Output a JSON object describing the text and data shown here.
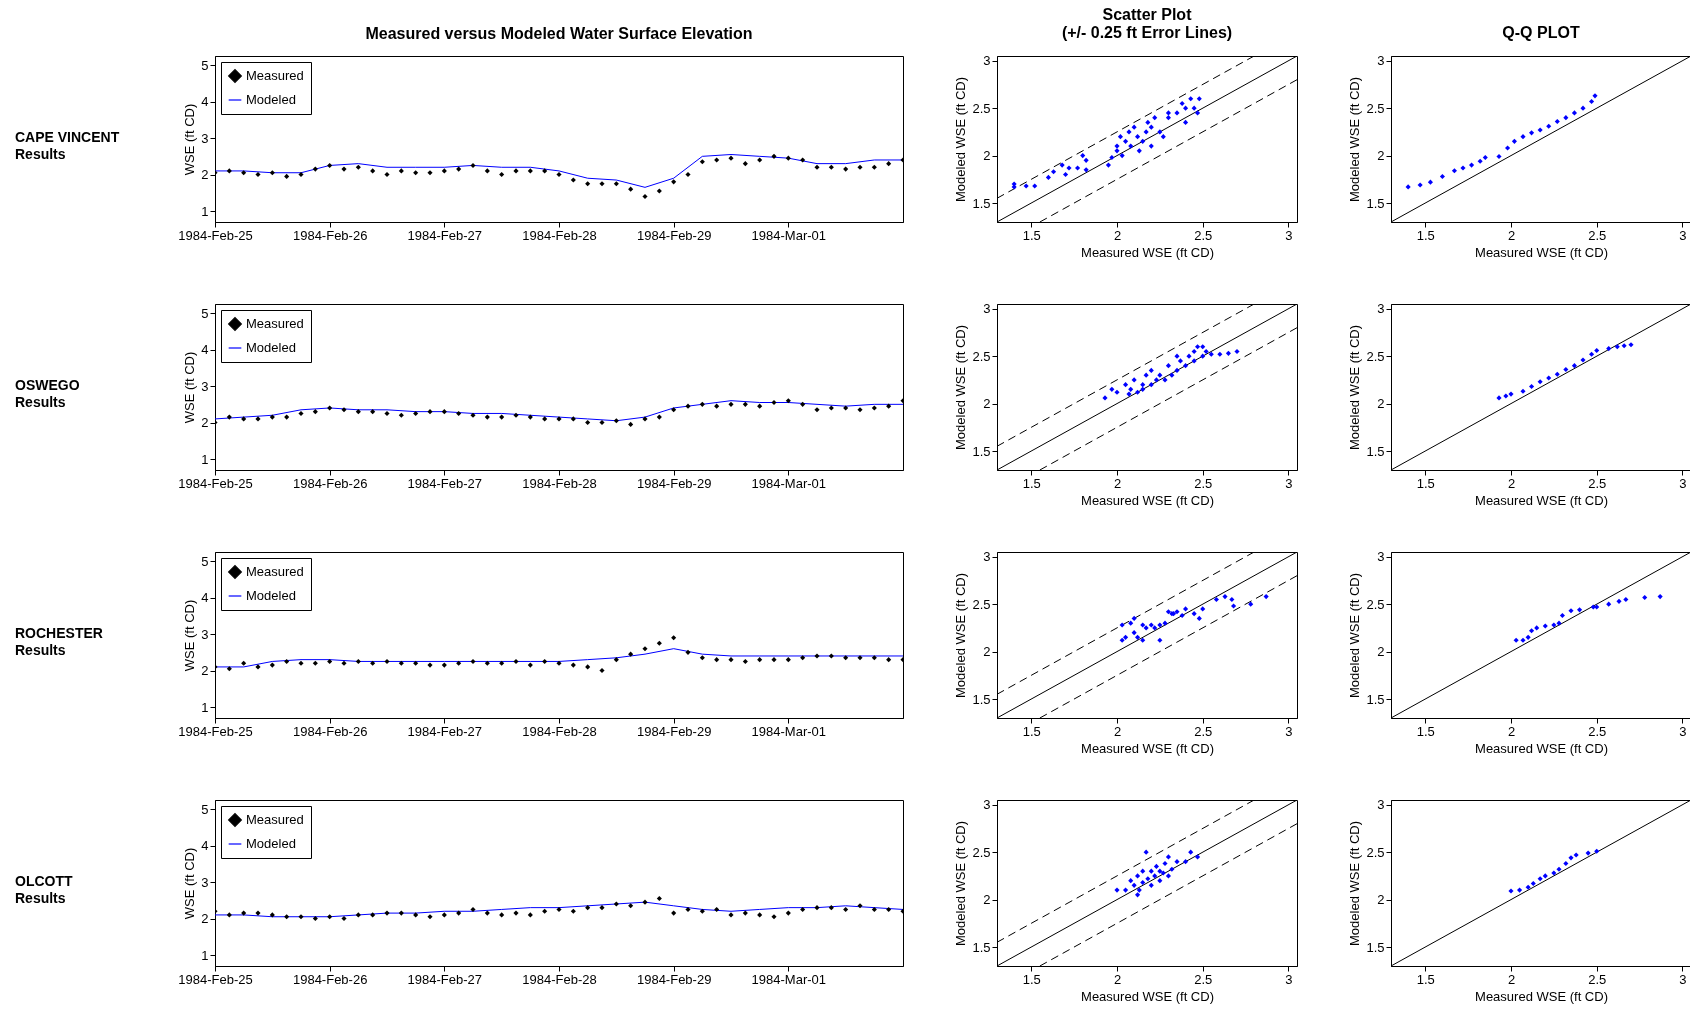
{
  "chart_data": [
    {
      "type": "line",
      "title": "Measured versus Modeled Water Surface Elevation",
      "ylabel": "WSE (ft CD)",
      "annotations": [
        "CAPE VINCENT",
        "Results"
      ],
      "legend": "top left",
      "xlim": [
        "1984-02-25",
        "1984-03-02"
      ],
      "xticks": [
        {
          "value": "1984-02-25",
          "label": "1984-Feb-25"
        },
        {
          "value": "1984-02-26",
          "label": "1984-Feb-26"
        },
        {
          "value": "1984-02-27",
          "label": "1984-Feb-27"
        },
        {
          "value": "1984-02-28",
          "label": "1984-Feb-28"
        },
        {
          "value": "1984-02-29",
          "label": "1984-Feb-29"
        },
        {
          "value": "1984-03-01",
          "label": "1984-Mar-01"
        }
      ],
      "ylim": [
        0.7,
        5.25
      ],
      "yticks": [
        1,
        2,
        3,
        4,
        5
      ],
      "x": [
        "1984-02-25T00:00",
        "1984-02-25T03:00",
        "1984-02-25T06:00",
        "1984-02-25T09:00",
        "1984-02-25T12:00",
        "1984-02-25T15:00",
        "1984-02-25T18:00",
        "1984-02-25T21:00",
        "1984-02-26T00:00",
        "1984-02-26T03:00",
        "1984-02-26T06:00",
        "1984-02-26T09:00",
        "1984-02-26T12:00",
        "1984-02-26T15:00",
        "1984-02-26T18:00",
        "1984-02-26T21:00",
        "1984-02-27T00:00",
        "1984-02-27T03:00",
        "1984-02-27T06:00",
        "1984-02-27T09:00",
        "1984-02-27T12:00",
        "1984-02-27T15:00",
        "1984-02-27T18:00",
        "1984-02-27T21:00",
        "1984-02-28T00:00",
        "1984-02-28T03:00",
        "1984-02-28T06:00",
        "1984-02-28T09:00",
        "1984-02-28T12:00",
        "1984-02-28T15:00",
        "1984-02-28T18:00",
        "1984-02-28T21:00",
        "1984-02-29T00:00",
        "1984-02-29T03:00",
        "1984-02-29T06:00",
        "1984-02-29T09:00",
        "1984-02-29T12:00",
        "1984-02-29T15:00",
        "1984-02-29T18:00",
        "1984-02-29T21:00",
        "1984-03-01T00:00",
        "1984-03-01T03:00",
        "1984-03-01T06:00",
        "1984-03-01T09:00",
        "1984-03-01T12:00",
        "1984-03-01T15:00",
        "1984-03-01T18:00",
        "1984-03-01T21:00",
        "1984-03-02T00:00"
      ],
      "series": [
        {
          "name": "Measured",
          "type": "scatter",
          "marker": "diamond",
          "color": "#000000",
          "values": [
            2.05,
            2.1,
            2.05,
            2.0,
            2.05,
            1.95,
            2.0,
            2.15,
            2.25,
            2.15,
            2.2,
            2.1,
            2.0,
            2.1,
            2.05,
            2.05,
            2.1,
            2.15,
            2.25,
            2.1,
            2.0,
            2.1,
            2.1,
            2.1,
            2.0,
            1.85,
            1.75,
            1.75,
            1.75,
            1.6,
            1.4,
            1.55,
            1.8,
            2.0,
            2.35,
            2.4,
            2.45,
            2.3,
            2.4,
            2.5,
            2.45,
            2.4,
            2.2,
            2.2,
            2.15,
            2.2,
            2.2,
            2.3,
            2.4
          ]
        },
        {
          "name": "Modeled",
          "line_style": "solid",
          "color": "#0000ff",
          "x": [
            "1984-02-25T00:00",
            "1984-02-25T06:00",
            "1984-02-25T12:00",
            "1984-02-25T18:00",
            "1984-02-26T00:00",
            "1984-02-26T06:00",
            "1984-02-26T12:00",
            "1984-02-26T18:00",
            "1984-02-27T00:00",
            "1984-02-27T06:00",
            "1984-02-27T12:00",
            "1984-02-27T18:00",
            "1984-02-28T00:00",
            "1984-02-28T06:00",
            "1984-02-28T12:00",
            "1984-02-28T18:00",
            "1984-02-29T00:00",
            "1984-02-29T06:00",
            "1984-02-29T12:00",
            "1984-02-29T18:00",
            "1984-03-01T00:00",
            "1984-03-01T06:00",
            "1984-03-01T12:00",
            "1984-03-01T18:00",
            "1984-03-02T00:00"
          ],
          "values": [
            2.1,
            2.1,
            2.05,
            2.05,
            2.25,
            2.3,
            2.2,
            2.2,
            2.2,
            2.25,
            2.2,
            2.2,
            2.1,
            1.9,
            1.85,
            1.65,
            1.9,
            2.5,
            2.55,
            2.5,
            2.45,
            2.3,
            2.3,
            2.4,
            2.4
          ]
        }
      ]
    },
    {
      "type": "scatter",
      "title": "Scatter Plot",
      "subtitle": "(+/- 0.25 ft Error Lines)",
      "xlabel": "Measured WSE (ft CD)",
      "ylabel": "Modeled WSE (ft CD)",
      "xlim": [
        1.3,
        3.05
      ],
      "ylim": [
        1.3,
        3.05
      ],
      "xticks": [
        1.5,
        2,
        2.5,
        3
      ],
      "yticks": [
        1.5,
        2,
        2.5,
        3
      ],
      "series": [
        {
          "marker": "diamond",
          "color": "#0000ff",
          "x": [
            1.4,
            1.4,
            1.47,
            1.52,
            1.6,
            1.63,
            1.68,
            1.7,
            1.72,
            1.77,
            1.8,
            1.82,
            1.82,
            1.95,
            1.97,
            2.0,
            2.0,
            2.02,
            2.03,
            2.05,
            2.07,
            2.08,
            2.1,
            2.12,
            2.13,
            2.15,
            2.17,
            2.18,
            2.2,
            2.2,
            2.22,
            2.25,
            2.27,
            2.3,
            2.35,
            2.38,
            2.4,
            2.43,
            2.45,
            2.47,
            2.48,
            2.4,
            2.3
          ],
          "values": [
            1.7,
            1.67,
            1.68,
            1.68,
            1.77,
            1.83,
            1.9,
            1.8,
            1.87,
            1.87,
            2.0,
            1.95,
            1.85,
            1.9,
            1.98,
            2.1,
            2.05,
            2.2,
            2.0,
            2.15,
            2.25,
            2.1,
            2.3,
            2.2,
            2.05,
            2.15,
            2.25,
            2.35,
            2.1,
            2.3,
            2.4,
            2.25,
            2.2,
            2.4,
            2.45,
            2.55,
            2.35,
            2.6,
            2.5,
            2.45,
            2.6,
            2.5,
            2.45
          ]
        },
        {
          "type": "line",
          "line_style": "solid",
          "color": "#000000",
          "x": [
            1.3,
            3.05
          ],
          "values": [
            1.3,
            3.05
          ]
        },
        {
          "type": "line",
          "line_style": "dashed",
          "color": "#000000",
          "x": [
            1.3,
            2.8
          ],
          "values": [
            1.55,
            3.05
          ]
        },
        {
          "type": "line",
          "line_style": "dashed",
          "color": "#000000",
          "x": [
            1.55,
            3.05
          ],
          "values": [
            1.3,
            2.8
          ]
        }
      ]
    },
    {
      "type": "scatter",
      "title": "Q-Q PLOT",
      "xlabel": "Measured WSE (ft CD)",
      "ylabel": "Modeled WSE (ft CD)",
      "xlim": [
        1.3,
        3.05
      ],
      "ylim": [
        1.3,
        3.05
      ],
      "xticks": [
        1.5,
        2,
        2.5,
        3
      ],
      "yticks": [
        1.5,
        2,
        2.5,
        3
      ],
      "series": [
        {
          "marker": "diamond",
          "color": "#0000ff",
          "x": [
            1.4,
            1.47,
            1.53,
            1.6,
            1.67,
            1.72,
            1.77,
            1.82,
            1.85,
            1.93,
            1.98,
            2.02,
            2.07,
            2.12,
            2.17,
            2.22,
            2.27,
            2.32,
            2.37,
            2.42,
            2.47,
            2.49
          ],
          "values": [
            1.67,
            1.69,
            1.72,
            1.78,
            1.84,
            1.87,
            1.9,
            1.94,
            1.98,
            1.99,
            2.08,
            2.15,
            2.2,
            2.24,
            2.27,
            2.31,
            2.36,
            2.4,
            2.45,
            2.5,
            2.57,
            2.63
          ]
        },
        {
          "type": "line",
          "line_style": "solid",
          "color": "#000000",
          "x": [
            1.3,
            3.05
          ],
          "values": [
            1.3,
            3.05
          ]
        }
      ]
    },
    {
      "type": "line",
      "ylabel": "WSE (ft CD)",
      "annotations": [
        "OSWEGO",
        "Results"
      ],
      "legend": "top left",
      "xlim": [
        "1984-02-25",
        "1984-03-02"
      ],
      "xticks": [
        {
          "value": "1984-02-25",
          "label": "1984-Feb-25"
        },
        {
          "value": "1984-02-26",
          "label": "1984-Feb-26"
        },
        {
          "value": "1984-02-27",
          "label": "1984-Feb-27"
        },
        {
          "value": "1984-02-28",
          "label": "1984-Feb-28"
        },
        {
          "value": "1984-02-29",
          "label": "1984-Feb-29"
        },
        {
          "value": "1984-03-01",
          "label": "1984-Mar-01"
        }
      ],
      "ylim": [
        0.7,
        5.25
      ],
      "yticks": [
        1,
        2,
        3,
        4,
        5
      ],
      "x": [
        "1984-02-25T00:00",
        "1984-02-25T03:00",
        "1984-02-25T06:00",
        "1984-02-25T09:00",
        "1984-02-25T12:00",
        "1984-02-25T15:00",
        "1984-02-25T18:00",
        "1984-02-25T21:00",
        "1984-02-26T00:00",
        "1984-02-26T03:00",
        "1984-02-26T06:00",
        "1984-02-26T09:00",
        "1984-02-26T12:00",
        "1984-02-26T15:00",
        "1984-02-26T18:00",
        "1984-02-26T21:00",
        "1984-02-27T00:00",
        "1984-02-27T03:00",
        "1984-02-27T06:00",
        "1984-02-27T09:00",
        "1984-02-27T12:00",
        "1984-02-27T15:00",
        "1984-02-27T18:00",
        "1984-02-27T21:00",
        "1984-02-28T00:00",
        "1984-02-28T03:00",
        "1984-02-28T06:00",
        "1984-02-28T09:00",
        "1984-02-28T12:00",
        "1984-02-28T15:00",
        "1984-02-28T18:00",
        "1984-02-28T21:00",
        "1984-02-29T00:00",
        "1984-02-29T03:00",
        "1984-02-29T06:00",
        "1984-02-29T09:00",
        "1984-02-29T12:00",
        "1984-02-29T15:00",
        "1984-02-29T18:00",
        "1984-02-29T21:00",
        "1984-03-01T00:00",
        "1984-03-01T03:00",
        "1984-03-01T06:00",
        "1984-03-01T09:00",
        "1984-03-01T12:00",
        "1984-03-01T15:00",
        "1984-03-01T18:00",
        "1984-03-01T21:00",
        "1984-03-02T00:00"
      ],
      "series": [
        {
          "name": "Measured",
          "type": "scatter",
          "marker": "diamond",
          "color": "#000000",
          "values": [
            2.0,
            2.15,
            2.1,
            2.1,
            2.15,
            2.15,
            2.25,
            2.3,
            2.4,
            2.35,
            2.3,
            2.3,
            2.25,
            2.2,
            2.25,
            2.3,
            2.3,
            2.25,
            2.2,
            2.15,
            2.15,
            2.2,
            2.15,
            2.1,
            2.1,
            2.1,
            2.0,
            2.0,
            2.05,
            1.95,
            2.1,
            2.15,
            2.35,
            2.45,
            2.5,
            2.45,
            2.5,
            2.5,
            2.45,
            2.55,
            2.6,
            2.5,
            2.35,
            2.4,
            2.4,
            2.35,
            2.4,
            2.45,
            2.6
          ]
        },
        {
          "name": "Modeled",
          "line_style": "solid",
          "color": "#0000ff",
          "x": [
            "1984-02-25T00:00",
            "1984-02-25T06:00",
            "1984-02-25T12:00",
            "1984-02-25T18:00",
            "1984-02-26T00:00",
            "1984-02-26T06:00",
            "1984-02-26T12:00",
            "1984-02-26T18:00",
            "1984-02-27T00:00",
            "1984-02-27T06:00",
            "1984-02-27T12:00",
            "1984-02-27T18:00",
            "1984-02-28T00:00",
            "1984-02-28T06:00",
            "1984-02-28T12:00",
            "1984-02-28T18:00",
            "1984-02-29T00:00",
            "1984-02-29T06:00",
            "1984-02-29T12:00",
            "1984-02-29T18:00",
            "1984-03-01T00:00",
            "1984-03-01T06:00",
            "1984-03-01T12:00",
            "1984-03-01T18:00",
            "1984-03-02T00:00"
          ],
          "values": [
            2.1,
            2.15,
            2.2,
            2.35,
            2.4,
            2.35,
            2.35,
            2.3,
            2.3,
            2.25,
            2.25,
            2.2,
            2.15,
            2.1,
            2.05,
            2.15,
            2.4,
            2.5,
            2.6,
            2.55,
            2.55,
            2.5,
            2.45,
            2.5,
            2.5
          ]
        }
      ]
    },
    {
      "type": "scatter",
      "xlabel": "Measured WSE (ft CD)",
      "ylabel": "Modeled WSE (ft CD)",
      "xlim": [
        1.3,
        3.05
      ],
      "ylim": [
        1.3,
        3.05
      ],
      "xticks": [
        1.5,
        2,
        2.5,
        3
      ],
      "yticks": [
        1.5,
        2,
        2.5,
        3
      ],
      "series": [
        {
          "marker": "diamond",
          "color": "#0000ff",
          "x": [
            1.93,
            1.97,
            2.0,
            2.05,
            2.07,
            2.08,
            2.1,
            2.12,
            2.15,
            2.17,
            2.2,
            2.2,
            2.23,
            2.25,
            2.28,
            2.3,
            2.32,
            2.35,
            2.37,
            2.4,
            2.42,
            2.45,
            2.45,
            2.47,
            2.5,
            2.5,
            2.52,
            2.55,
            2.6,
            2.65,
            2.7,
            2.35,
            2.15
          ],
          "values": [
            2.06,
            2.15,
            2.12,
            2.2,
            2.1,
            2.15,
            2.25,
            2.12,
            2.2,
            2.3,
            2.2,
            2.35,
            2.25,
            2.3,
            2.25,
            2.4,
            2.3,
            2.35,
            2.45,
            2.4,
            2.5,
            2.45,
            2.55,
            2.6,
            2.6,
            2.5,
            2.55,
            2.52,
            2.52,
            2.53,
            2.55,
            2.5,
            2.15
          ]
        },
        {
          "type": "line",
          "line_style": "solid",
          "color": "#000000",
          "x": [
            1.3,
            3.05
          ],
          "values": [
            1.3,
            3.05
          ]
        },
        {
          "type": "line",
          "line_style": "dashed",
          "color": "#000000",
          "x": [
            1.3,
            2.8
          ],
          "values": [
            1.55,
            3.05
          ]
        },
        {
          "type": "line",
          "line_style": "dashed",
          "color": "#000000",
          "x": [
            1.55,
            3.05
          ],
          "values": [
            1.3,
            2.8
          ]
        }
      ]
    },
    {
      "type": "scatter",
      "xlabel": "Measured WSE (ft CD)",
      "ylabel": "Modeled WSE (ft CD)",
      "xlim": [
        1.3,
        3.05
      ],
      "ylim": [
        1.3,
        3.05
      ],
      "xticks": [
        1.5,
        2,
        2.5,
        3
      ],
      "yticks": [
        1.5,
        2,
        2.5,
        3
      ],
      "series": [
        {
          "marker": "diamond",
          "color": "#0000ff",
          "x": [
            1.93,
            1.97,
            2.0,
            2.07,
            2.12,
            2.17,
            2.22,
            2.27,
            2.32,
            2.37,
            2.42,
            2.47,
            2.5,
            2.57,
            2.62,
            2.66,
            2.7
          ],
          "values": [
            2.06,
            2.08,
            2.1,
            2.13,
            2.18,
            2.23,
            2.27,
            2.31,
            2.36,
            2.4,
            2.46,
            2.52,
            2.56,
            2.58,
            2.6,
            2.61,
            2.62
          ]
        },
        {
          "type": "line",
          "line_style": "solid",
          "color": "#000000",
          "x": [
            1.3,
            3.05
          ],
          "values": [
            1.3,
            3.05
          ]
        }
      ]
    },
    {
      "type": "line",
      "ylabel": "WSE (ft CD)",
      "annotations": [
        "ROCHESTER",
        "Results"
      ],
      "legend": "top left",
      "xlim": [
        "1984-02-25",
        "1984-03-02"
      ],
      "xticks": [
        {
          "value": "1984-02-25",
          "label": "1984-Feb-25"
        },
        {
          "value": "1984-02-26",
          "label": "1984-Feb-26"
        },
        {
          "value": "1984-02-27",
          "label": "1984-Feb-27"
        },
        {
          "value": "1984-02-28",
          "label": "1984-Feb-28"
        },
        {
          "value": "1984-02-29",
          "label": "1984-Feb-29"
        },
        {
          "value": "1984-03-01",
          "label": "1984-Mar-01"
        }
      ],
      "ylim": [
        0.7,
        5.25
      ],
      "yticks": [
        1,
        2,
        3,
        4,
        5
      ],
      "x": [
        "1984-02-25T00:00",
        "1984-02-25T03:00",
        "1984-02-25T06:00",
        "1984-02-25T09:00",
        "1984-02-25T12:00",
        "1984-02-25T15:00",
        "1984-02-25T18:00",
        "1984-02-25T21:00",
        "1984-02-26T00:00",
        "1984-02-26T03:00",
        "1984-02-26T06:00",
        "1984-02-26T09:00",
        "1984-02-26T12:00",
        "1984-02-26T15:00",
        "1984-02-26T18:00",
        "1984-02-26T21:00",
        "1984-02-27T00:00",
        "1984-02-27T03:00",
        "1984-02-27T06:00",
        "1984-02-27T09:00",
        "1984-02-27T12:00",
        "1984-02-27T15:00",
        "1984-02-27T18:00",
        "1984-02-27T21:00",
        "1984-02-28T00:00",
        "1984-02-28T03:00",
        "1984-02-28T06:00",
        "1984-02-28T09:00",
        "1984-02-28T12:00",
        "1984-02-28T15:00",
        "1984-02-28T18:00",
        "1984-02-28T21:00",
        "1984-02-29T00:00",
        "1984-02-29T03:00",
        "1984-02-29T06:00",
        "1984-02-29T09:00",
        "1984-02-29T12:00",
        "1984-02-29T15:00",
        "1984-02-29T18:00",
        "1984-02-29T21:00",
        "1984-03-01T00:00",
        "1984-03-01T03:00",
        "1984-03-01T06:00",
        "1984-03-01T09:00",
        "1984-03-01T12:00",
        "1984-03-01T15:00",
        "1984-03-01T18:00",
        "1984-03-01T21:00",
        "1984-03-02T00:00"
      ],
      "series": [
        {
          "name": "Measured",
          "type": "scatter",
          "marker": "diamond",
          "color": "#000000",
          "values": [
            2.1,
            2.05,
            2.2,
            2.1,
            2.15,
            2.25,
            2.2,
            2.2,
            2.25,
            2.2,
            2.25,
            2.2,
            2.25,
            2.2,
            2.2,
            2.15,
            2.15,
            2.2,
            2.25,
            2.2,
            2.2,
            2.25,
            2.15,
            2.25,
            2.2,
            2.15,
            2.1,
            2.0,
            2.3,
            2.45,
            2.6,
            2.75,
            2.9,
            2.5,
            2.35,
            2.3,
            2.3,
            2.25,
            2.3,
            2.3,
            2.3,
            2.35,
            2.4,
            2.4,
            2.35,
            2.35,
            2.35,
            2.3,
            2.3
          ]
        },
        {
          "name": "Modeled",
          "line_style": "solid",
          "color": "#0000ff",
          "x": [
            "1984-02-25T00:00",
            "1984-02-25T06:00",
            "1984-02-25T12:00",
            "1984-02-25T18:00",
            "1984-02-26T00:00",
            "1984-02-26T06:00",
            "1984-02-26T12:00",
            "1984-02-26T18:00",
            "1984-02-27T00:00",
            "1984-02-27T06:00",
            "1984-02-27T12:00",
            "1984-02-27T18:00",
            "1984-02-28T00:00",
            "1984-02-28T06:00",
            "1984-02-28T12:00",
            "1984-02-28T18:00",
            "1984-02-29T00:00",
            "1984-02-29T06:00",
            "1984-02-29T12:00",
            "1984-02-29T18:00",
            "1984-03-01T00:00",
            "1984-03-01T06:00",
            "1984-03-01T12:00",
            "1984-03-01T18:00",
            "1984-03-02T00:00"
          ],
          "values": [
            2.1,
            2.1,
            2.25,
            2.3,
            2.3,
            2.25,
            2.25,
            2.25,
            2.25,
            2.25,
            2.25,
            2.25,
            2.25,
            2.3,
            2.35,
            2.45,
            2.6,
            2.45,
            2.4,
            2.4,
            2.4,
            2.4,
            2.4,
            2.4,
            2.4
          ]
        }
      ]
    },
    {
      "type": "scatter",
      "xlabel": "Measured WSE (ft CD)",
      "ylabel": "Modeled WSE (ft CD)",
      "xlim": [
        1.3,
        3.05
      ],
      "ylim": [
        1.3,
        3.05
      ],
      "xticks": [
        1.5,
        2,
        2.5,
        3
      ],
      "yticks": [
        1.5,
        2,
        2.5,
        3
      ],
      "series": [
        {
          "marker": "diamond",
          "color": "#0000ff",
          "x": [
            2.03,
            2.03,
            2.05,
            2.08,
            2.1,
            2.12,
            2.15,
            2.15,
            2.17,
            2.2,
            2.22,
            2.25,
            2.25,
            2.28,
            2.3,
            2.32,
            2.35,
            2.38,
            2.4,
            2.45,
            2.48,
            2.5,
            2.58,
            2.63,
            2.67,
            2.68,
            2.78,
            2.87,
            2.1,
            2.33
          ],
          "values": [
            2.28,
            2.12,
            2.15,
            2.3,
            2.2,
            2.15,
            2.28,
            2.12,
            2.25,
            2.28,
            2.25,
            2.28,
            2.12,
            2.3,
            2.42,
            2.4,
            2.42,
            2.38,
            2.45,
            2.4,
            2.35,
            2.45,
            2.55,
            2.58,
            2.55,
            2.48,
            2.5,
            2.58,
            2.35,
            2.4
          ]
        },
        {
          "type": "line",
          "line_style": "solid",
          "color": "#000000",
          "x": [
            1.3,
            3.05
          ],
          "values": [
            1.3,
            3.05
          ]
        },
        {
          "type": "line",
          "line_style": "dashed",
          "color": "#000000",
          "x": [
            1.3,
            2.8
          ],
          "values": [
            1.55,
            3.05
          ]
        },
        {
          "type": "line",
          "line_style": "dashed",
          "color": "#000000",
          "x": [
            1.55,
            3.05
          ],
          "values": [
            1.3,
            2.8
          ]
        }
      ]
    },
    {
      "type": "scatter",
      "xlabel": "Measured WSE (ft CD)",
      "ylabel": "Modeled WSE (ft CD)",
      "xlim": [
        1.3,
        3.05
      ],
      "ylim": [
        1.3,
        3.05
      ],
      "xticks": [
        1.5,
        2,
        2.5,
        3
      ],
      "yticks": [
        1.5,
        2,
        2.5,
        3
      ],
      "series": [
        {
          "marker": "diamond",
          "color": "#0000ff",
          "x": [
            2.03,
            2.07,
            2.1,
            2.12,
            2.15,
            2.2,
            2.25,
            2.28,
            2.3,
            2.35,
            2.4,
            2.48,
            2.5,
            2.57,
            2.63,
            2.67,
            2.78,
            2.87
          ],
          "values": [
            2.12,
            2.12,
            2.15,
            2.22,
            2.25,
            2.27,
            2.28,
            2.3,
            2.38,
            2.43,
            2.44,
            2.47,
            2.47,
            2.5,
            2.53,
            2.55,
            2.57,
            2.58
          ]
        },
        {
          "type": "line",
          "line_style": "solid",
          "color": "#000000",
          "x": [
            1.3,
            3.05
          ],
          "values": [
            1.3,
            3.05
          ]
        }
      ]
    },
    {
      "type": "line",
      "ylabel": "WSE (ft CD)",
      "annotations": [
        "OLCOTT",
        "Results"
      ],
      "legend": "top left",
      "xlim": [
        "1984-02-25",
        "1984-03-02"
      ],
      "xticks": [
        {
          "value": "1984-02-25",
          "label": "1984-Feb-25"
        },
        {
          "value": "1984-02-26",
          "label": "1984-Feb-26"
        },
        {
          "value": "1984-02-27",
          "label": "1984-Feb-27"
        },
        {
          "value": "1984-02-28",
          "label": "1984-Feb-28"
        },
        {
          "value": "1984-02-29",
          "label": "1984-Feb-29"
        },
        {
          "value": "1984-03-01",
          "label": "1984-Mar-01"
        }
      ],
      "ylim": [
        0.7,
        5.25
      ],
      "yticks": [
        1,
        2,
        3,
        4,
        5
      ],
      "x": [
        "1984-02-25T00:00",
        "1984-02-25T03:00",
        "1984-02-25T06:00",
        "1984-02-25T09:00",
        "1984-02-25T12:00",
        "1984-02-25T15:00",
        "1984-02-25T18:00",
        "1984-02-25T21:00",
        "1984-02-26T00:00",
        "1984-02-26T03:00",
        "1984-02-26T06:00",
        "1984-02-26T09:00",
        "1984-02-26T12:00",
        "1984-02-26T15:00",
        "1984-02-26T18:00",
        "1984-02-26T21:00",
        "1984-02-27T00:00",
        "1984-02-27T03:00",
        "1984-02-27T06:00",
        "1984-02-27T09:00",
        "1984-02-27T12:00",
        "1984-02-27T15:00",
        "1984-02-27T18:00",
        "1984-02-27T21:00",
        "1984-02-28T00:00",
        "1984-02-28T03:00",
        "1984-02-28T06:00",
        "1984-02-28T09:00",
        "1984-02-28T12:00",
        "1984-02-28T15:00",
        "1984-02-28T18:00",
        "1984-02-28T21:00",
        "1984-02-29T00:00",
        "1984-02-29T03:00",
        "1984-02-29T06:00",
        "1984-02-29T09:00",
        "1984-02-29T12:00",
        "1984-02-29T15:00",
        "1984-02-29T18:00",
        "1984-02-29T21:00",
        "1984-03-01T00:00",
        "1984-03-01T03:00",
        "1984-03-01T06:00",
        "1984-03-01T09:00",
        "1984-03-01T12:00",
        "1984-03-01T15:00",
        "1984-03-01T18:00",
        "1984-03-01T21:00",
        "1984-03-02T00:00"
      ],
      "series": [
        {
          "name": "Measured",
          "type": "scatter",
          "marker": "diamond",
          "color": "#000000",
          "values": [
            2.2,
            2.1,
            2.15,
            2.15,
            2.1,
            2.05,
            2.05,
            2.0,
            2.05,
            2.0,
            2.1,
            2.1,
            2.15,
            2.15,
            2.1,
            2.05,
            2.1,
            2.15,
            2.25,
            2.15,
            2.1,
            2.15,
            2.1,
            2.2,
            2.25,
            2.2,
            2.3,
            2.3,
            2.4,
            2.35,
            2.45,
            2.55,
            2.15,
            2.25,
            2.2,
            2.25,
            2.1,
            2.15,
            2.1,
            2.05,
            2.15,
            2.25,
            2.3,
            2.3,
            2.25,
            2.35,
            2.25,
            2.25,
            2.2
          ]
        },
        {
          "name": "Modeled",
          "line_style": "solid",
          "color": "#0000ff",
          "x": [
            "1984-02-25T00:00",
            "1984-02-25T06:00",
            "1984-02-25T12:00",
            "1984-02-25T18:00",
            "1984-02-26T00:00",
            "1984-02-26T06:00",
            "1984-02-26T12:00",
            "1984-02-26T18:00",
            "1984-02-27T00:00",
            "1984-02-27T06:00",
            "1984-02-27T12:00",
            "1984-02-27T18:00",
            "1984-02-28T00:00",
            "1984-02-28T06:00",
            "1984-02-28T12:00",
            "1984-02-28T18:00",
            "1984-02-29T00:00",
            "1984-02-29T06:00",
            "1984-02-29T12:00",
            "1984-02-29T18:00",
            "1984-03-01T00:00",
            "1984-03-01T06:00",
            "1984-03-01T12:00",
            "1984-03-01T18:00",
            "1984-03-02T00:00"
          ],
          "values": [
            2.1,
            2.1,
            2.05,
            2.05,
            2.05,
            2.1,
            2.15,
            2.15,
            2.2,
            2.2,
            2.25,
            2.3,
            2.3,
            2.35,
            2.4,
            2.45,
            2.35,
            2.25,
            2.2,
            2.25,
            2.3,
            2.3,
            2.35,
            2.3,
            2.25
          ]
        }
      ]
    },
    {
      "type": "scatter",
      "xlabel": "Measured WSE (ft CD)",
      "ylabel": "Modeled WSE (ft CD)",
      "xlim": [
        1.3,
        3.05
      ],
      "ylim": [
        1.3,
        3.05
      ],
      "xticks": [
        1.5,
        2,
        2.5,
        3
      ],
      "yticks": [
        1.5,
        2,
        2.5,
        3
      ],
      "series": [
        {
          "marker": "diamond",
          "color": "#0000ff",
          "x": [
            2.0,
            2.05,
            2.08,
            2.1,
            2.12,
            2.13,
            2.15,
            2.15,
            2.17,
            2.18,
            2.2,
            2.2,
            2.22,
            2.23,
            2.25,
            2.25,
            2.28,
            2.3,
            2.3,
            2.32,
            2.35,
            2.4,
            2.43,
            2.47,
            2.12,
            2.27
          ],
          "values": [
            2.1,
            2.1,
            2.2,
            2.15,
            2.25,
            2.1,
            2.3,
            2.18,
            2.5,
            2.22,
            2.3,
            2.15,
            2.25,
            2.35,
            2.2,
            2.3,
            2.38,
            2.25,
            2.45,
            2.32,
            2.4,
            2.4,
            2.5,
            2.45,
            2.05,
            2.28
          ]
        },
        {
          "type": "line",
          "line_style": "solid",
          "color": "#000000",
          "x": [
            1.3,
            3.05
          ],
          "values": [
            1.3,
            3.05
          ]
        },
        {
          "type": "line",
          "line_style": "dashed",
          "color": "#000000",
          "x": [
            1.3,
            2.8
          ],
          "values": [
            1.55,
            3.05
          ]
        },
        {
          "type": "line",
          "line_style": "dashed",
          "color": "#000000",
          "x": [
            1.55,
            3.05
          ],
          "values": [
            1.3,
            2.8
          ]
        }
      ]
    },
    {
      "type": "scatter",
      "xlabel": "Measured WSE (ft CD)",
      "ylabel": "Modeled WSE (ft CD)",
      "xlim": [
        1.3,
        3.05
      ],
      "ylim": [
        1.3,
        3.05
      ],
      "xticks": [
        1.5,
        2,
        2.5,
        3
      ],
      "yticks": [
        1.5,
        2,
        2.5,
        3
      ],
      "series": [
        {
          "marker": "diamond",
          "color": "#0000ff",
          "x": [
            2.0,
            2.05,
            2.1,
            2.13,
            2.17,
            2.2,
            2.25,
            2.28,
            2.32,
            2.35,
            2.38,
            2.45,
            2.5
          ],
          "values": [
            2.09,
            2.1,
            2.13,
            2.17,
            2.22,
            2.25,
            2.28,
            2.32,
            2.38,
            2.44,
            2.47,
            2.49,
            2.51
          ]
        },
        {
          "type": "line",
          "line_style": "solid",
          "color": "#000000",
          "x": [
            1.3,
            3.05
          ],
          "values": [
            1.3,
            3.05
          ]
        }
      ]
    }
  ]
}
